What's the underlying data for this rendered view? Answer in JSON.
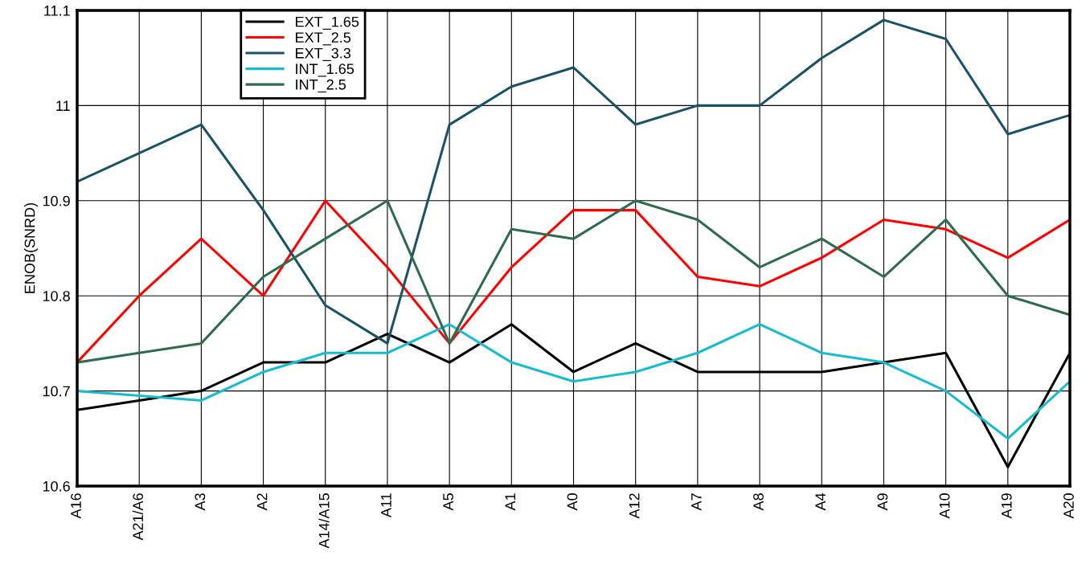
{
  "chart_data": {
    "type": "line",
    "ylabel": "ENOB(SNRD)",
    "categories": [
      "A16",
      "A21/A6",
      "A3",
      "A2",
      "A14/A15",
      "A11",
      "A5",
      "A1",
      "A0",
      "A12",
      "A7",
      "A8",
      "A4",
      "A9",
      "A10",
      "A19",
      "A20"
    ],
    "series": [
      {
        "name": "EXT_1.65",
        "color": "#000000",
        "values": [
          10.68,
          10.69,
          10.7,
          10.73,
          10.73,
          10.76,
          10.73,
          10.77,
          10.72,
          10.75,
          10.72,
          10.72,
          10.72,
          10.73,
          10.74,
          10.62,
          10.74
        ]
      },
      {
        "name": "EXT_2.5",
        "color": "#ff0000",
        "values": [
          10.73,
          10.8,
          10.86,
          10.8,
          10.9,
          10.83,
          10.75,
          10.83,
          10.89,
          10.89,
          10.82,
          10.81,
          10.84,
          10.88,
          10.87,
          10.84,
          10.88
        ]
      },
      {
        "name": "EXT_3.3",
        "color": "#1a5266",
        "values": [
          10.92,
          10.95,
          10.98,
          10.89,
          10.79,
          10.75,
          10.98,
          11.02,
          11.04,
          10.98,
          11.0,
          11.0,
          11.05,
          11.09,
          11.07,
          10.97,
          10.99
        ]
      },
      {
        "name": "INT_1.65",
        "color": "#17bccf",
        "values": [
          10.7,
          10.695,
          10.69,
          10.72,
          10.74,
          10.74,
          10.77,
          10.73,
          10.71,
          10.72,
          10.74,
          10.77,
          10.74,
          10.73,
          10.7,
          10.65,
          10.71
        ]
      },
      {
        "name": "INT_2.5",
        "color": "#2e6b4f",
        "values": [
          10.73,
          10.74,
          10.75,
          10.82,
          10.86,
          10.9,
          10.75,
          10.87,
          10.86,
          10.9,
          10.88,
          10.83,
          10.86,
          10.82,
          10.88,
          10.8,
          10.78
        ]
      }
    ],
    "ylim": [
      10.6,
      11.1
    ],
    "yticks": [
      10.6,
      10.7,
      10.8,
      10.9,
      11,
      11.1
    ],
    "grid": true,
    "legend": "top left",
    "marker": "none",
    "line_style": "solid"
  }
}
